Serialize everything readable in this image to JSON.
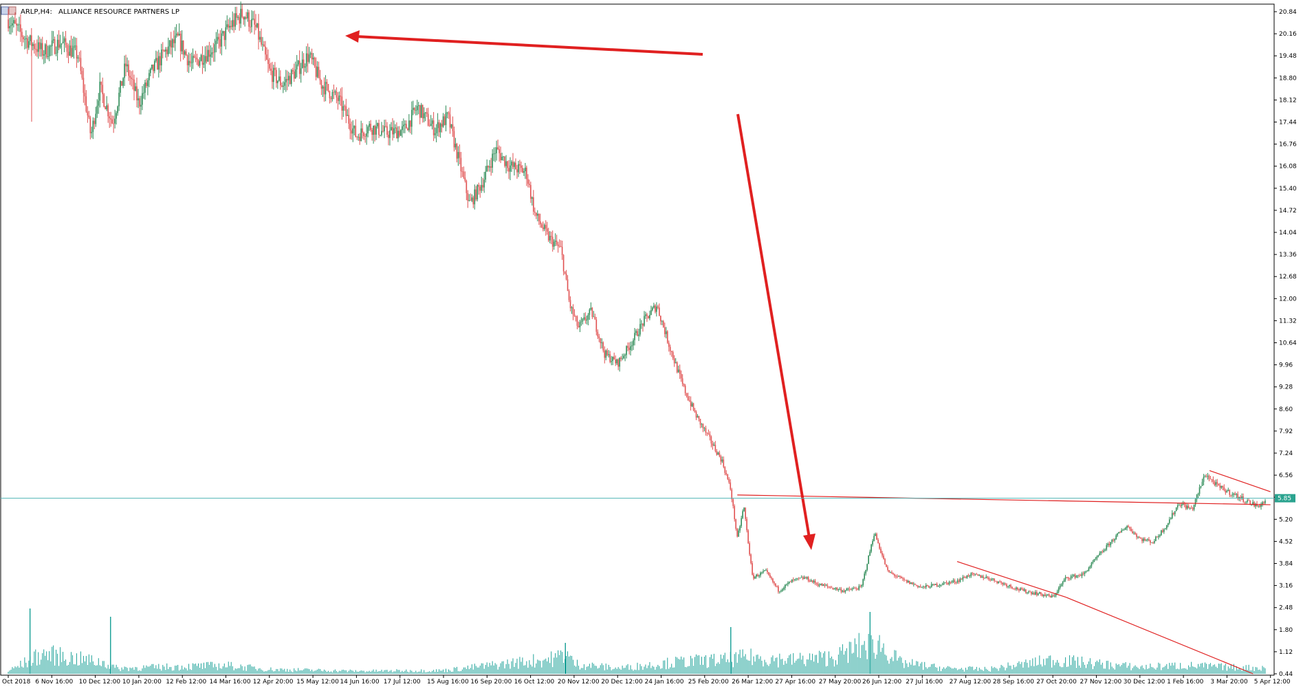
{
  "header": {
    "symbol": "ARLP,H4:",
    "company": "ALLIANCE RESOURCE PARTNERS LP"
  },
  "colors": {
    "background": "#ffffff",
    "axis": "#000000",
    "candle_up": "#2e8b57",
    "candle_down": "#e05050",
    "volume": "#20a39a",
    "price_line": "#4fb5b5",
    "price_badge": "#2aa38f",
    "annotation": "#e02020",
    "trendline": "#e02020"
  },
  "chart_data": {
    "type": "candlestick",
    "timeframe": "H4",
    "ylim": [
      0.44,
      21.2
    ],
    "y_ticks": [
      "20.84",
      "20.16",
      "19.48",
      "18.80",
      "18.12",
      "17.44",
      "16.76",
      "16.08",
      "15.40",
      "14.72",
      "14.04",
      "13.36",
      "12.68",
      "12.00",
      "11.32",
      "10.64",
      "9.96",
      "9.28",
      "8.60",
      "7.92",
      "7.24",
      "6.56",
      "5.88",
      "5.20",
      "4.52",
      "3.84",
      "3.16",
      "2.48",
      "1.80",
      "1.12",
      "0.44"
    ],
    "current_price": 5.85,
    "current_price_label": "5.85",
    "x_ticks": [
      "Oct 2018",
      "6 Nov 16:00",
      "10 Dec 12:00",
      "10 Jan 20:00",
      "12 Feb 12:00",
      "14 Mar 16:00",
      "12 Apr 20:00",
      "15 May 12:00",
      "14 Jun 16:00",
      "17 Jul 12:00",
      "15 Aug 16:00",
      "16 Sep 20:00",
      "16 Oct 12:00",
      "20 Nov 12:00",
      "20 Dec 12:00",
      "24 Jan 16:00",
      "25 Feb 20:00",
      "26 Mar 12:00",
      "27 Apr 16:00",
      "27 May 20:00",
      "26 Jun 12:00",
      "27 Jul 16:00",
      "27 Aug 12:00",
      "28 Sep 16:00",
      "27 Oct 20:00",
      "27 Nov 12:00",
      "30 Dec 12:00",
      "1 Feb 16:00",
      "3 Mar 20:00",
      "5 Apr 12:00"
    ],
    "price_path": [
      [
        0,
        20.6
      ],
      [
        0.4,
        20.0
      ],
      [
        0.8,
        19.6
      ],
      [
        1.2,
        19.9
      ],
      [
        1.6,
        19.5
      ],
      [
        1.9,
        17.0
      ],
      [
        2.1,
        18.5
      ],
      [
        2.4,
        17.4
      ],
      [
        2.7,
        19.2
      ],
      [
        3.0,
        18.0
      ],
      [
        3.3,
        19.0
      ],
      [
        3.6,
        19.6
      ],
      [
        3.9,
        20.0
      ],
      [
        4.2,
        19.2
      ],
      [
        4.5,
        19.5
      ],
      [
        4.8,
        19.8
      ],
      [
        5.1,
        20.4
      ],
      [
        5.4,
        20.8
      ],
      [
        5.7,
        20.3
      ],
      [
        6.0,
        19.0
      ],
      [
        6.3,
        18.6
      ],
      [
        6.6,
        19.0
      ],
      [
        6.9,
        19.5
      ],
      [
        7.2,
        18.6
      ],
      [
        7.6,
        18.1
      ],
      [
        8.0,
        17.0
      ],
      [
        8.3,
        17.3
      ],
      [
        8.7,
        17.1
      ],
      [
        9.1,
        17.2
      ],
      [
        9.4,
        17.9
      ],
      [
        9.8,
        17.2
      ],
      [
        10.1,
        17.6
      ],
      [
        10.4,
        16.0
      ],
      [
        10.6,
        14.9
      ],
      [
        10.9,
        15.6
      ],
      [
        11.2,
        16.6
      ],
      [
        11.5,
        16.1
      ],
      [
        11.9,
        15.9
      ],
      [
        12.1,
        14.6
      ],
      [
        12.4,
        13.9
      ],
      [
        12.7,
        13.5
      ],
      [
        12.9,
        11.8
      ],
      [
        13.1,
        11.1
      ],
      [
        13.4,
        11.6
      ],
      [
        13.7,
        10.3
      ],
      [
        14.0,
        10.0
      ],
      [
        14.3,
        10.6
      ],
      [
        14.6,
        11.3
      ],
      [
        14.9,
        11.8
      ],
      [
        15.2,
        10.5
      ],
      [
        15.5,
        9.3
      ],
      [
        15.8,
        8.4
      ],
      [
        16.1,
        7.7
      ],
      [
        16.4,
        7.0
      ],
      [
        16.6,
        6.1
      ],
      [
        16.75,
        4.6
      ],
      [
        16.9,
        5.6
      ],
      [
        17.1,
        3.4
      ],
      [
        17.4,
        3.6
      ],
      [
        17.7,
        3.0
      ],
      [
        18.0,
        3.3
      ],
      [
        18.3,
        3.4
      ],
      [
        18.6,
        3.2
      ],
      [
        18.9,
        3.1
      ],
      [
        19.2,
        3.0
      ],
      [
        19.6,
        3.1
      ],
      [
        19.9,
        4.8
      ],
      [
        20.2,
        3.6
      ],
      [
        20.6,
        3.3
      ],
      [
        21.0,
        3.1
      ],
      [
        21.4,
        3.2
      ],
      [
        21.8,
        3.3
      ],
      [
        22.1,
        3.5
      ],
      [
        22.5,
        3.4
      ],
      [
        22.9,
        3.2
      ],
      [
        23.3,
        3.0
      ],
      [
        23.7,
        2.9
      ],
      [
        24.0,
        2.8
      ],
      [
        24.3,
        3.4
      ],
      [
        24.7,
        3.5
      ],
      [
        25.0,
        4.0
      ],
      [
        25.4,
        4.6
      ],
      [
        25.7,
        5.0
      ],
      [
        26.0,
        4.6
      ],
      [
        26.3,
        4.5
      ],
      [
        26.6,
        5.0
      ],
      [
        26.9,
        5.7
      ],
      [
        27.2,
        5.5
      ],
      [
        27.5,
        6.6
      ],
      [
        27.8,
        6.2
      ],
      [
        28.1,
        6.0
      ],
      [
        28.4,
        5.8
      ],
      [
        28.7,
        5.6
      ],
      [
        29.0,
        5.85
      ]
    ],
    "volume_path": [
      [
        0,
        0.05
      ],
      [
        0.8,
        0.36
      ],
      [
        2.2,
        0.2
      ],
      [
        2.5,
        0.1
      ],
      [
        5.0,
        0.15
      ],
      [
        6.0,
        0.08
      ],
      [
        8.0,
        0.05
      ],
      [
        10.0,
        0.06
      ],
      [
        12.6,
        0.28
      ],
      [
        12.8,
        0.4
      ],
      [
        13.0,
        0.18
      ],
      [
        14.0,
        0.1
      ],
      [
        15.5,
        0.22
      ],
      [
        16.5,
        0.25
      ],
      [
        17.0,
        0.3
      ],
      [
        18.0,
        0.25
      ],
      [
        19.0,
        0.3
      ],
      [
        19.6,
        0.5
      ],
      [
        20.0,
        0.55
      ],
      [
        20.5,
        0.2
      ],
      [
        21.5,
        0.1
      ],
      [
        22.5,
        0.08
      ],
      [
        24.0,
        0.25
      ],
      [
        25.0,
        0.18
      ],
      [
        26.0,
        0.12
      ],
      [
        27.0,
        0.15
      ],
      [
        28.0,
        0.12
      ],
      [
        29.0,
        0.1
      ]
    ],
    "volume_spikes": [
      [
        0.5,
        0.95
      ],
      [
        2.35,
        0.83
      ],
      [
        16.6,
        0.68
      ],
      [
        19.8,
        0.9
      ],
      [
        12.8,
        0.45
      ]
    ],
    "trendlines": [
      {
        "from": [
          16.75,
          5.95
        ],
        "to": [
          29.0,
          5.65
        ],
        "role": "support"
      },
      {
        "from": [
          27.6,
          6.7
        ],
        "to": [
          29.0,
          6.05
        ],
        "role": "upper-triangle"
      },
      {
        "from": [
          21.8,
          3.9
        ],
        "to": [
          24.3,
          2.8
        ],
        "role": "descending-channel"
      },
      {
        "from": [
          24.3,
          2.8
        ],
        "to": [
          28.6,
          0.44
        ],
        "role": "descending-extension"
      }
    ]
  }
}
